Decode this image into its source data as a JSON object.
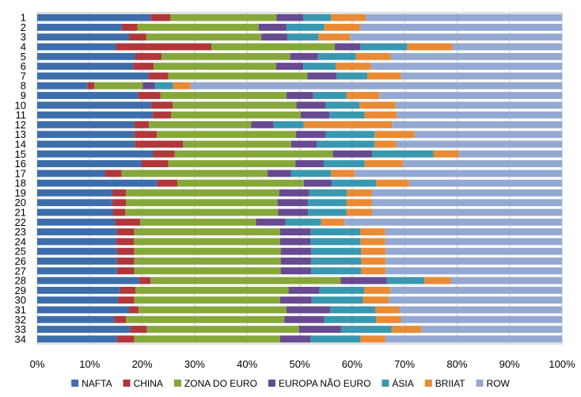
{
  "chart_data": {
    "type": "bar",
    "orientation": "horizontal",
    "stacked": "percent",
    "categories": [
      "1",
      "2",
      "3",
      "4",
      "5",
      "6",
      "7",
      "8",
      "9",
      "10",
      "11",
      "12",
      "13",
      "14",
      "15",
      "16",
      "17",
      "18",
      "19",
      "20",
      "21",
      "22",
      "23",
      "24",
      "25",
      "26",
      "27",
      "28",
      "29",
      "30",
      "31",
      "32",
      "33",
      "34"
    ],
    "x_ticks": [
      "0%",
      "10%",
      "20%",
      "30%",
      "40%",
      "50%",
      "60%",
      "70%",
      "80%",
      "90%",
      "100%"
    ],
    "xlim": [
      0,
      100
    ],
    "grid": "vertical",
    "legend_position": "bottom",
    "series": [
      {
        "name": "NAFTA",
        "color": "#3d6eab",
        "values": [
          21.6,
          16.1,
          17.5,
          15.0,
          18.7,
          18.3,
          21.2,
          9.6,
          19.2,
          21.7,
          22.0,
          18.5,
          18.5,
          18.6,
          22.1,
          19.9,
          12.9,
          22.9,
          14.3,
          14.3,
          14.4,
          14.9,
          15.2,
          15.1,
          15.2,
          15.2,
          15.2,
          19.4,
          15.8,
          15.4,
          17.5,
          14.7,
          17.7,
          15.2
        ]
      },
      {
        "name": "CHINA",
        "color": "#b0373a",
        "values": [
          3.8,
          3.0,
          3.3,
          18.2,
          5.0,
          3.9,
          3.8,
          1.3,
          4.3,
          4.1,
          3.5,
          2.8,
          4.3,
          9.2,
          4.1,
          5.1,
          3.2,
          3.8,
          2.6,
          2.6,
          2.4,
          4.7,
          3.3,
          3.3,
          3.3,
          3.3,
          3.3,
          2.2,
          2.9,
          3.1,
          1.8,
          2.2,
          3.2,
          3.3
        ]
      },
      {
        "name": "ZONA DO EURO",
        "color": "#86a83b",
        "values": [
          20.2,
          23.1,
          21.9,
          23.5,
          24.5,
          23.3,
          26.5,
          9.2,
          24.0,
          23.6,
          24.7,
          19.5,
          26.5,
          20.6,
          30.1,
          24.2,
          27.8,
          24.1,
          29.2,
          28.9,
          29.1,
          22.1,
          27.8,
          27.9,
          27.9,
          27.9,
          27.9,
          36.2,
          29.2,
          27.8,
          28.2,
          30.2,
          29.0,
          27.8
        ]
      },
      {
        "name": "EUROPA NÃO EURO",
        "color": "#674a90",
        "values": [
          5.1,
          5.3,
          5.0,
          4.9,
          5.3,
          5.2,
          5.5,
          2.3,
          5.1,
          5.5,
          5.5,
          4.2,
          5.7,
          4.9,
          7.5,
          5.4,
          4.5,
          5.3,
          5.7,
          5.8,
          5.7,
          5.6,
          5.8,
          5.8,
          5.8,
          5.8,
          5.8,
          8.8,
          5.9,
          6.0,
          8.3,
          7.5,
          8.0,
          5.8
        ]
      },
      {
        "name": "ÁSIA",
        "color": "#3998af",
        "values": [
          5.3,
          7.2,
          5.9,
          8.9,
          7.2,
          6.2,
          5.9,
          3.5,
          6.3,
          6.5,
          6.7,
          5.8,
          9.3,
          11.0,
          11.7,
          7.8,
          7.6,
          8.5,
          7.2,
          7.3,
          7.3,
          6.8,
          9.5,
          9.5,
          9.5,
          9.5,
          9.5,
          7.2,
          8.5,
          9.8,
          8.6,
          10.0,
          9.6,
          9.5
        ]
      },
      {
        "name": "BRIIAT",
        "color": "#e98a34",
        "values": [
          6.6,
          6.8,
          6.0,
          8.6,
          6.7,
          6.7,
          6.4,
          3.3,
          6.3,
          6.9,
          6.1,
          16.8,
          7.6,
          4.1,
          4.9,
          7.3,
          4.5,
          6.3,
          4.8,
          4.9,
          4.9,
          4.4,
          4.7,
          4.7,
          4.7,
          4.7,
          4.7,
          5.0,
          5.0,
          4.9,
          4.6,
          4.7,
          5.7,
          4.7
        ]
      },
      {
        "name": "ROW",
        "color": "#93a9d2",
        "values": [
          37.4,
          38.5,
          40.4,
          20.9,
          32.6,
          36.4,
          30.7,
          70.8,
          34.8,
          31.7,
          31.5,
          32.4,
          28.1,
          31.6,
          19.6,
          30.3,
          39.5,
          29.1,
          36.2,
          36.2,
          36.2,
          41.5,
          33.7,
          33.7,
          33.6,
          33.6,
          33.6,
          21.2,
          32.7,
          33.0,
          31.0,
          30.7,
          26.8,
          33.7
        ]
      }
    ]
  }
}
